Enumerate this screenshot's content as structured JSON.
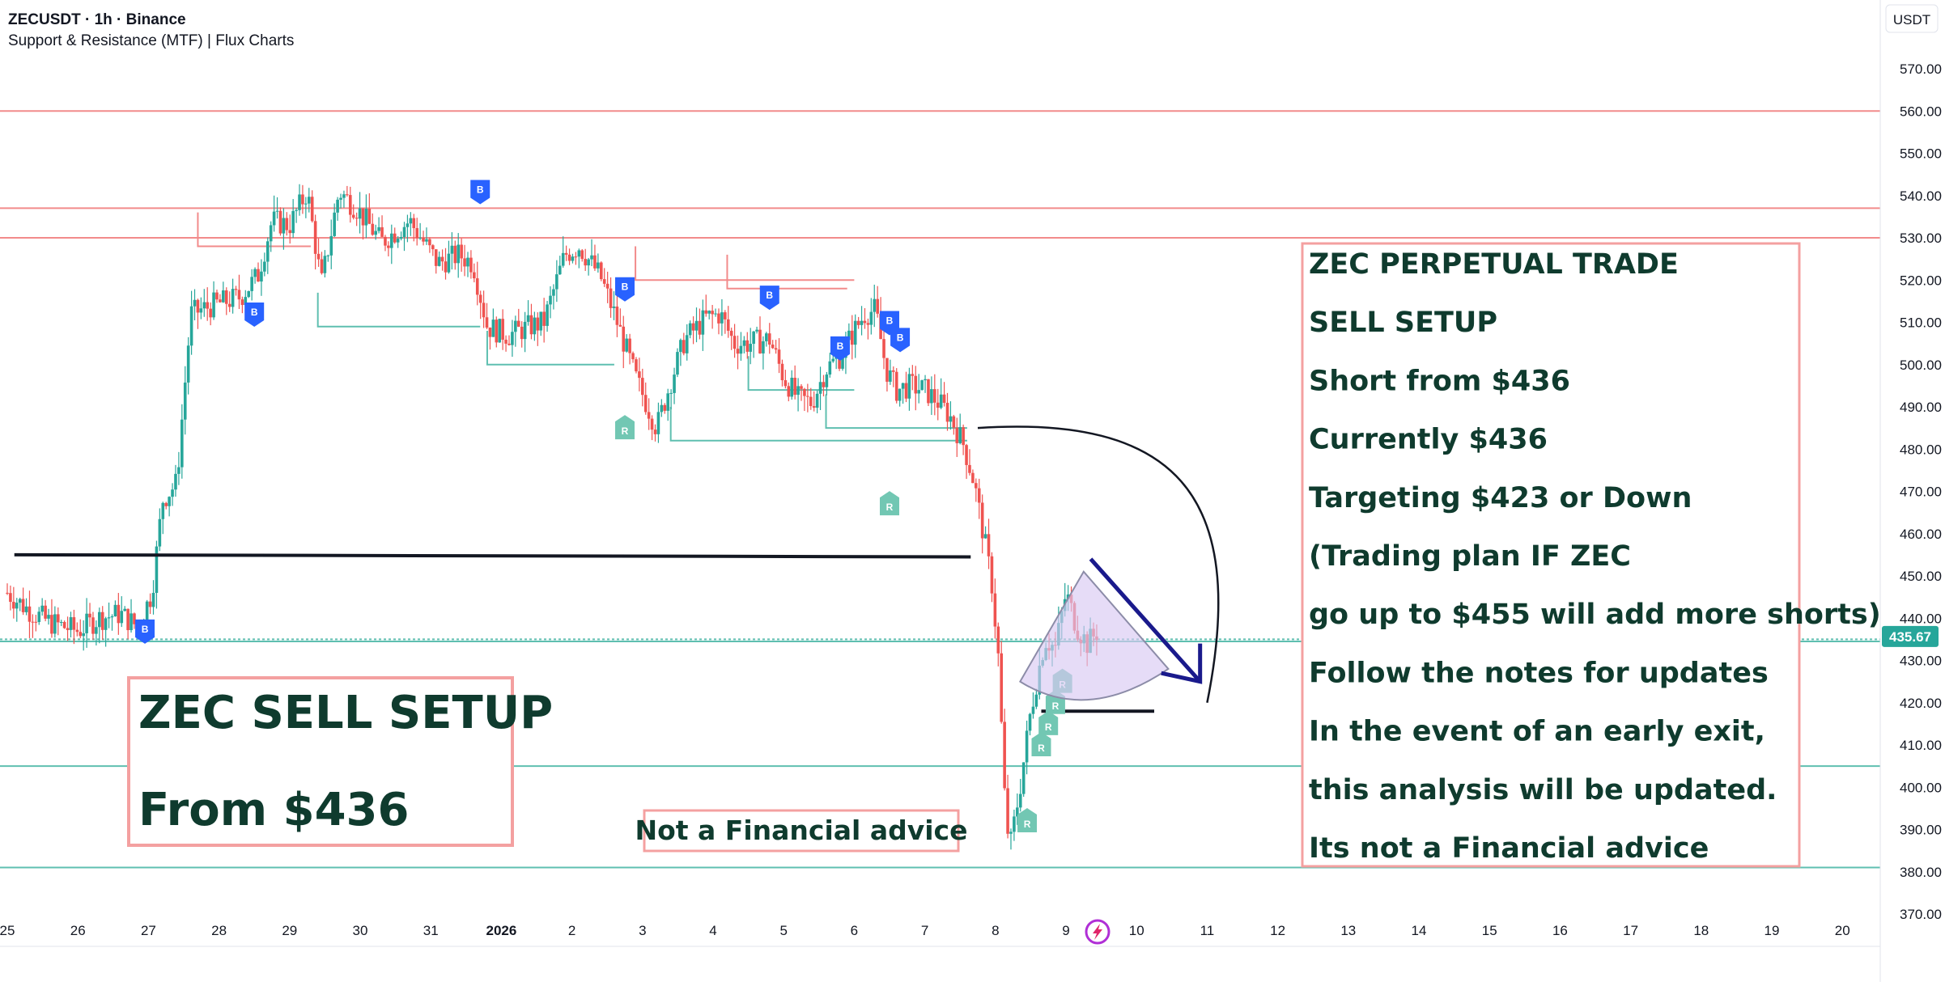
{
  "header": {
    "symbol": "ZECUSDT · 1h · Binance",
    "indicator": "Support & Resistance (MTF) | Flux Charts",
    "currency_button": "USDT"
  },
  "colors": {
    "up": "#26a69a",
    "down": "#ef5350",
    "resistance": "#f28b8b",
    "support": "#5fbfb0",
    "buy_marker": "#2962ff",
    "r_marker": "#72c7b3",
    "note_border": "#f4a0a0",
    "note_text": "#0f3b2e",
    "price_tag": "#26a69a",
    "arrow": "#1a1a8c",
    "cone_fill": "#d9c9f2"
  },
  "chart_data": {
    "type": "candlestick",
    "symbol": "ZECUSDT",
    "timeframe": "1h",
    "exchange": "Binance",
    "ylim": [
      365,
      575
    ],
    "y_ticks": [
      "570.00",
      "560.00",
      "550.00",
      "540.00",
      "530.00",
      "520.00",
      "510.00",
      "500.00",
      "490.00",
      "480.00",
      "470.00",
      "460.00",
      "450.00",
      "440.00",
      "430.00",
      "420.00",
      "410.00",
      "400.00",
      "390.00",
      "380.00",
      "370.00"
    ],
    "x_ticks": [
      "25",
      "26",
      "27",
      "28",
      "29",
      "30",
      "31",
      "2026",
      "2",
      "3",
      "4",
      "5",
      "6",
      "7",
      "8",
      "9",
      "10",
      "11",
      "12",
      "13",
      "14",
      "15",
      "16",
      "17",
      "18",
      "19",
      "20"
    ],
    "last_price": "435.67",
    "price_path": [
      [
        25.0,
        446
      ],
      [
        25.3,
        442
      ],
      [
        25.6,
        439
      ],
      [
        26.0,
        437
      ],
      [
        26.3,
        440
      ],
      [
        26.6,
        441
      ],
      [
        26.85,
        438
      ],
      [
        27.05,
        446
      ],
      [
        27.2,
        468
      ],
      [
        27.4,
        472
      ],
      [
        27.6,
        512
      ],
      [
        27.9,
        514
      ],
      [
        28.3,
        516
      ],
      [
        28.55,
        521
      ],
      [
        28.75,
        534
      ],
      [
        29.0,
        533
      ],
      [
        29.25,
        541
      ],
      [
        29.45,
        519
      ],
      [
        29.7,
        541
      ],
      [
        29.95,
        537
      ],
      [
        30.3,
        529
      ],
      [
        30.7,
        534
      ],
      [
        31.1,
        524
      ],
      [
        31.4,
        526
      ],
      [
        31.6,
        524
      ],
      [
        31.8,
        509
      ],
      [
        32.1,
        507
      ],
      [
        32.4,
        509
      ],
      [
        32.6,
        510
      ],
      [
        32.9,
        526
      ],
      [
        33.1,
        528
      ],
      [
        33.4,
        521
      ],
      [
        33.6,
        512
      ],
      [
        33.9,
        497
      ],
      [
        34.2,
        485
      ],
      [
        34.4,
        496
      ],
      [
        34.6,
        506
      ],
      [
        34.9,
        511
      ],
      [
        35.1,
        512
      ],
      [
        35.3,
        505
      ],
      [
        35.5,
        505
      ],
      [
        35.8,
        506
      ],
      [
        36.0,
        497
      ],
      [
        36.2,
        492
      ],
      [
        36.4,
        491
      ],
      [
        36.6,
        499
      ],
      [
        36.8,
        502
      ],
      [
        37.0,
        508
      ],
      [
        37.15,
        512
      ],
      [
        37.3,
        513
      ],
      [
        37.45,
        499
      ],
      [
        37.6,
        494
      ],
      [
        37.8,
        495
      ],
      [
        38.0,
        494
      ],
      [
        38.2,
        491
      ],
      [
        38.35,
        488
      ],
      [
        38.55,
        481
      ],
      [
        38.7,
        472
      ],
      [
        38.85,
        458
      ],
      [
        38.95,
        448
      ],
      [
        39.05,
        429
      ],
      [
        39.12,
        400
      ],
      [
        39.2,
        385
      ],
      [
        39.35,
        400
      ],
      [
        39.5,
        418
      ],
      [
        39.7,
        435
      ],
      [
        39.85,
        433
      ],
      [
        40.0,
        446
      ],
      [
        40.15,
        438
      ],
      [
        40.3,
        434
      ],
      [
        40.45,
        437
      ]
    ],
    "resistance_levels": [
      560,
      537,
      530
    ],
    "support_levels": [
      435,
      405,
      381
    ],
    "drawn_lines": [
      {
        "from": [
          25.1,
          455
        ],
        "to": [
          38.65,
          454.5
        ]
      },
      {
        "from": [
          39.65,
          418
        ],
        "to": [
          41.25,
          418
        ]
      }
    ],
    "buy_markers": [
      [
        26.95,
        437
      ],
      [
        28.5,
        512
      ],
      [
        31.7,
        541
      ],
      [
        33.75,
        518
      ],
      [
        35.8,
        516
      ],
      [
        36.8,
        504
      ],
      [
        37.5,
        510
      ],
      [
        37.65,
        506
      ]
    ],
    "r_markers": [
      [
        33.75,
        485
      ],
      [
        37.5,
        467
      ],
      [
        39.45,
        392
      ],
      [
        39.95,
        425
      ],
      [
        39.85,
        420
      ],
      [
        39.75,
        415
      ],
      [
        39.65,
        410
      ]
    ]
  },
  "notes": {
    "sell_setup_box": [
      "ZEC SELL SETUP",
      "From $436"
    ],
    "disclaimer_box": "Not a Financial advice",
    "plan_box": [
      "ZEC PERPETUAL TRADE",
      "SELL SETUP",
      "Short from $436",
      "Currently $436",
      "Targeting $423 or Down",
      "(Trading plan IF ZEC",
      "go up to $455 will add more shorts)",
      "Follow the notes for updates",
      "In the event of an early exit,",
      "this analysis will be updated.",
      "Its not a Financial advice"
    ]
  },
  "icons": {
    "bottom_logo": "lightning-logo-icon",
    "buy_marker": "buy-marker-icon",
    "r_marker": "support-marker-icon"
  }
}
